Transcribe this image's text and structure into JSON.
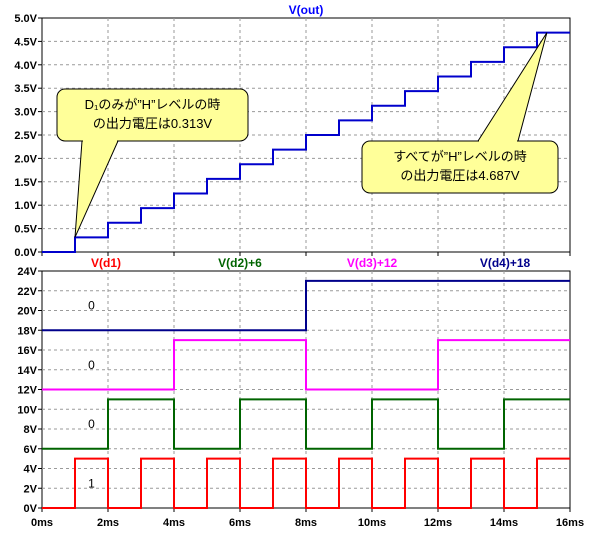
{
  "chart_data": [
    {
      "type": "line",
      "title": "V(out)",
      "title_color": "#0000ff",
      "xlim": [
        0,
        16
      ],
      "ylim": [
        0,
        5
      ],
      "y_ticks": [
        "0.0V",
        "0.5V",
        "1.0V",
        "1.5V",
        "2.0V",
        "2.5V",
        "3.0V",
        "3.5V",
        "4.0V",
        "4.5V",
        "5.0V"
      ],
      "y_tick_values": [
        0,
        0.5,
        1,
        1.5,
        2,
        2.5,
        3,
        3.5,
        4,
        4.5,
        5
      ],
      "grid": "dashed",
      "series": [
        {
          "name": "V(out)",
          "color": "#0000cc",
          "step": true,
          "x": [
            0,
            1,
            2,
            3,
            4,
            5,
            6,
            7,
            8,
            9,
            10,
            11,
            12,
            13,
            14,
            15,
            16
          ],
          "y": [
            0,
            0.313,
            0.625,
            0.938,
            1.25,
            1.563,
            1.875,
            2.188,
            2.5,
            2.813,
            3.125,
            3.438,
            3.75,
            4.063,
            4.375,
            4.687,
            4.687
          ]
        }
      ],
      "annotations": [
        {
          "lines": [
            "D₁のみが”H”レベルの時",
            "の出力電圧は0.313V"
          ],
          "target": [
            1,
            0.313
          ]
        },
        {
          "lines": [
            "すべてが”H”レベルの時",
            "の出力電圧は4.687V"
          ],
          "target": [
            15.3,
            4.687
          ]
        }
      ]
    },
    {
      "type": "line",
      "xlim": [
        0,
        16
      ],
      "ylim": [
        0,
        24
      ],
      "x_ticks": [
        "0ms",
        "2ms",
        "4ms",
        "6ms",
        "8ms",
        "10ms",
        "12ms",
        "14ms",
        "16ms"
      ],
      "x_tick_values": [
        0,
        2,
        4,
        6,
        8,
        10,
        12,
        14,
        16
      ],
      "y_ticks": [
        "0V",
        "2V",
        "4V",
        "6V",
        "8V",
        "10V",
        "12V",
        "14V",
        "16V",
        "18V",
        "20V",
        "22V",
        "24V"
      ],
      "y_tick_values": [
        0,
        2,
        4,
        6,
        8,
        10,
        12,
        14,
        16,
        18,
        20,
        22,
        24
      ],
      "grid": "dashed",
      "series": [
        {
          "name": "V(d1)",
          "color": "#ff0000",
          "step": true,
          "x": [
            0,
            1,
            2,
            3,
            4,
            5,
            6,
            7,
            8,
            9,
            10,
            11,
            12,
            13,
            14,
            15,
            16
          ],
          "y": [
            0,
            5,
            0,
            5,
            0,
            5,
            0,
            5,
            0,
            5,
            0,
            5,
            0,
            5,
            0,
            5,
            5
          ]
        },
        {
          "name": "V(d2)+6",
          "color": "#006400",
          "step": true,
          "x": [
            0,
            2,
            4,
            6,
            8,
            10,
            12,
            14,
            16
          ],
          "y": [
            6,
            11,
            6,
            11,
            6,
            11,
            6,
            11,
            11
          ]
        },
        {
          "name": "V(d3)+12",
          "color": "#ff00ff",
          "step": true,
          "x": [
            0,
            4,
            8,
            12,
            16
          ],
          "y": [
            12,
            17,
            12,
            17,
            17
          ]
        },
        {
          "name": "V(d4)+18",
          "color": "#00008b",
          "step": true,
          "x": [
            0,
            8,
            16
          ],
          "y": [
            18,
            23,
            23
          ]
        }
      ],
      "bit_labels": [
        {
          "text": "0",
          "x": 1.5,
          "y": 20.5
        },
        {
          "text": "0",
          "x": 1.5,
          "y": 14.5
        },
        {
          "text": "0",
          "x": 1.5,
          "y": 8.5
        },
        {
          "text": "1",
          "x": 1.5,
          "y": 2.5
        }
      ]
    }
  ]
}
